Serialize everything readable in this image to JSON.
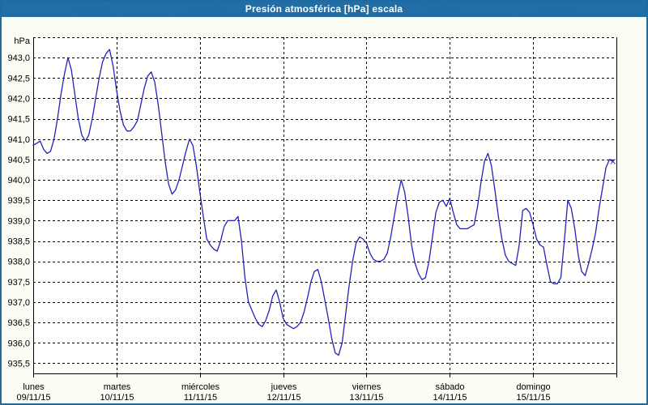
{
  "window": {
    "title": "Presión atmosférica [hPa] escala"
  },
  "colors": {
    "titlebar": "#1e6ba3",
    "border": "#1e6ba3",
    "line": "#2222bb",
    "grid": "#000000",
    "plot_bg": "#fffffe",
    "window_bg": "#fbfcf4",
    "title_text": "#ffffff",
    "label_text": "#000000"
  },
  "chart_data": {
    "type": "line",
    "title": "Presión atmosférica [hPa] escala",
    "unit_label": "hPa",
    "grid": "dashed",
    "legend_position": "none",
    "y_top_value": 943.5,
    "y_bottom_value": 935.25,
    "ytick_start": 943.0,
    "ytick_step": 0.5,
    "ytick_labels": [
      "943,0",
      "942,5",
      "942,0",
      "941,5",
      "941,0",
      "940,5",
      "940,0",
      "939,5",
      "939,0",
      "938,5",
      "938,0",
      "937,5",
      "937,0",
      "936,5",
      "936,0",
      "935,5"
    ],
    "days": [
      {
        "name": "lunes",
        "date": "09/11/15"
      },
      {
        "name": "martes",
        "date": "10/11/15"
      },
      {
        "name": "miércoles",
        "date": "11/11/15"
      },
      {
        "name": "jueves",
        "date": "12/11/15"
      },
      {
        "name": "viernes",
        "date": "13/11/15"
      },
      {
        "name": "sábado",
        "date": "14/11/15"
      },
      {
        "name": "domingo",
        "date": "15/11/15"
      }
    ],
    "points_per_day": 24,
    "x_unit": "hour",
    "series": [
      {
        "name": "presión atmosférica",
        "values": [
          940.85,
          940.9,
          940.95,
          940.75,
          940.65,
          940.7,
          941.0,
          941.5,
          942.1,
          942.6,
          943.0,
          942.7,
          942.1,
          941.5,
          941.1,
          940.95,
          941.1,
          941.5,
          942.0,
          942.5,
          942.9,
          943.1,
          943.2,
          942.8,
          942.2,
          941.7,
          941.35,
          941.2,
          941.2,
          941.3,
          941.45,
          941.85,
          942.25,
          942.55,
          942.65,
          942.4,
          941.85,
          941.15,
          940.45,
          939.9,
          939.65,
          939.75,
          940.0,
          940.35,
          940.7,
          941.0,
          940.85,
          940.35,
          939.7,
          939.1,
          938.55,
          938.4,
          938.3,
          938.25,
          938.5,
          938.85,
          939.0,
          939.0,
          939.0,
          939.1,
          938.5,
          937.6,
          937.0,
          936.8,
          936.6,
          936.45,
          936.4,
          936.55,
          936.8,
          937.15,
          937.3,
          937.0,
          936.6,
          936.45,
          936.4,
          936.35,
          936.4,
          936.5,
          936.75,
          937.1,
          937.5,
          937.75,
          937.8,
          937.5,
          937.05,
          936.6,
          936.1,
          935.75,
          935.7,
          936.0,
          936.7,
          937.4,
          938.0,
          938.45,
          938.6,
          938.55,
          938.45,
          938.2,
          938.05,
          938.0,
          938.0,
          938.05,
          938.2,
          938.6,
          939.1,
          939.6,
          940.0,
          939.7,
          939.1,
          938.4,
          937.95,
          937.7,
          937.55,
          937.6,
          938.0,
          938.6,
          939.2,
          939.45,
          939.5,
          939.35,
          939.55,
          939.2,
          938.9,
          938.8,
          938.8,
          938.8,
          938.85,
          938.9,
          939.35,
          939.95,
          940.45,
          940.65,
          940.35,
          939.75,
          939.1,
          938.55,
          938.15,
          938.0,
          937.95,
          937.9,
          938.4,
          939.25,
          939.3,
          939.2,
          938.9,
          938.55,
          938.4,
          938.35,
          937.9,
          937.5,
          937.45,
          937.45,
          937.6,
          938.5,
          939.5,
          939.3,
          938.8,
          938.15,
          937.75,
          937.65,
          937.95,
          938.3,
          938.7,
          939.3,
          939.8,
          940.3,
          940.5,
          940.45
        ]
      }
    ]
  }
}
